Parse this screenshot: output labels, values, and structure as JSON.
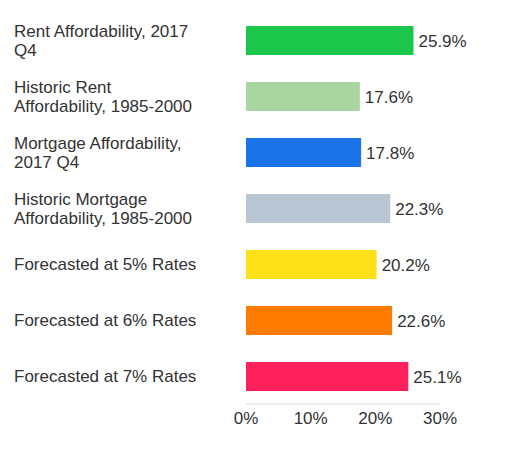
{
  "chart_data": {
    "type": "bar",
    "orientation": "horizontal",
    "categories": [
      "Rent Affordability, 2017 Q4",
      "Historic Rent Affordability, 1985-2000",
      "Mortgage Affordability, 2017 Q4",
      "Historic Mortgage Affordability, 1985-2000",
      "Forecasted at 5% Rates",
      "Forecasted at 6% Rates",
      "Forecasted at 7% Rates"
    ],
    "values": [
      25.9,
      17.6,
      17.8,
      22.3,
      20.2,
      22.6,
      25.1
    ],
    "value_labels": [
      "25.9%",
      "17.6%",
      "17.8%",
      "22.3%",
      "20.2%",
      "22.6%",
      "25.1%"
    ],
    "colors": [
      "#1cc64a",
      "#a8d5a0",
      "#1a73e8",
      "#b8c7d3",
      "#ffe11a",
      "#ff7b00",
      "#ff1f5b"
    ],
    "xlim": [
      0,
      30
    ],
    "xticks": [
      {
        "value": 0,
        "label": "0%"
      },
      {
        "value": 10,
        "label": "10%"
      },
      {
        "value": 20,
        "label": "20%"
      },
      {
        "value": 30,
        "label": "30%"
      }
    ],
    "grid": false,
    "data_labels": true
  }
}
